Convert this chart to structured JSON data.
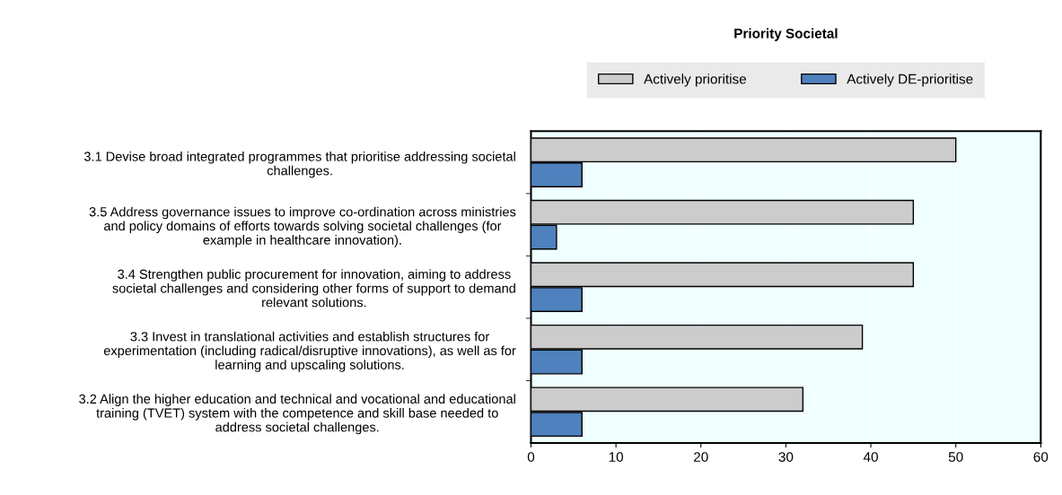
{
  "chart_data": {
    "type": "bar",
    "orientation": "horizontal",
    "title": "Priority Societal",
    "categories": [
      "3.1 Devise broad integrated programmes that prioritise addressing societal\nchallenges.",
      "3.5 Address governance issues to improve co-ordination across ministries\nand policy domains of efforts towards solving societal challenges (for\nexample in healthcare innovation).",
      "3.4 Strengthen public procurement for innovation, aiming to address\nsocietal challenges and considering other forms of support to demand\nrelevant solutions.",
      "3.3 Invest in translational activities and establish structures for\nexperimentation (including radical/disruptive innovations), as well as for\nlearning and upscaling solutions.",
      "3.2 Align the higher education and technical and vocational and educational\ntraining (TVET) system with the competence and skill base needed to\naddress societal challenges."
    ],
    "series": [
      {
        "name": "Actively prioritise",
        "color": "#cccccc",
        "values": [
          50,
          45,
          45,
          39,
          32
        ]
      },
      {
        "name": "Actively DE-prioritise",
        "color": "#4e81bd",
        "values": [
          6,
          3,
          6,
          6,
          6
        ]
      }
    ],
    "xlim": [
      0,
      60
    ],
    "xticks": [
      0,
      10,
      20,
      30,
      40,
      50,
      60
    ],
    "grid": "x",
    "legend": "top"
  }
}
